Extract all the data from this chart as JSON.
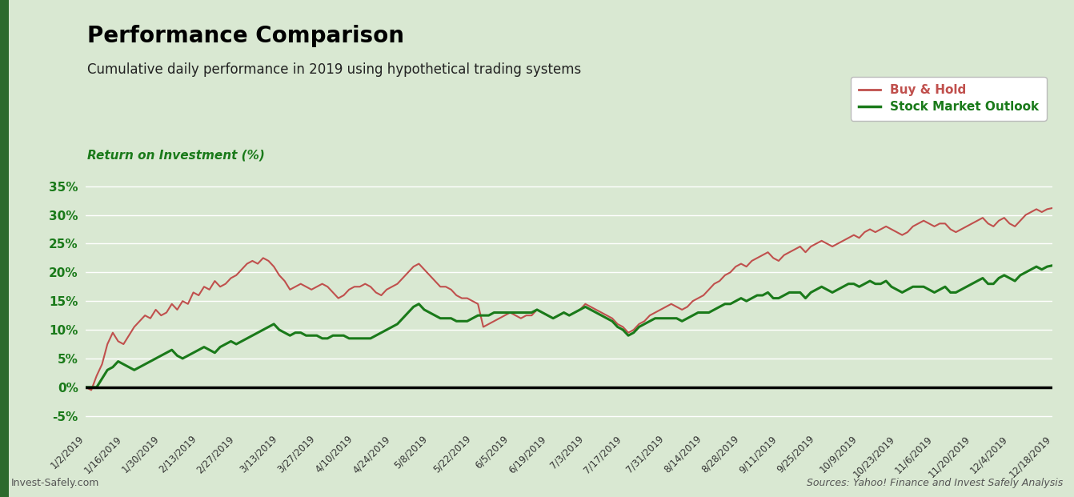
{
  "title": "Performance Comparison",
  "subtitle": "Cumulative daily performance in 2019 using hypothetical trading systems",
  "ylabel": "Return on Investment (%)",
  "footer_left": "Invest-Safely.com",
  "footer_right": "Sources: Yahoo! Finance and Invest Safely Analysis",
  "legend_labels": [
    "Buy & Hold",
    "Stock Market Outlook"
  ],
  "legend_colors": [
    "#c0504d",
    "#1a7a1a"
  ],
  "bg_color": "#d9e8d2",
  "title_color": "#000000",
  "subtitle_color": "#222222",
  "ylabel_color": "#1a7a1a",
  "ytick_color": "#1a7a1a",
  "xtick_color": "#333333",
  "grid_color": "#ffffff",
  "zero_line_color": "#000000",
  "green_bar_color": "#2d6a2d",
  "ylim": [
    -7,
    38
  ],
  "yticks": [
    -5,
    0,
    5,
    10,
    15,
    20,
    25,
    30,
    35
  ],
  "xtick_labels": [
    "1/2/2019",
    "1/16/2019",
    "1/30/2019",
    "2/13/2019",
    "2/27/2019",
    "3/13/2019",
    "3/27/2019",
    "4/10/2019",
    "4/24/2019",
    "5/8/2019",
    "5/22/2019",
    "6/5/2019",
    "6/19/2019",
    "7/3/2019",
    "7/17/2019",
    "7/31/2019",
    "8/14/2019",
    "8/28/2019",
    "9/11/2019",
    "9/25/2019",
    "10/9/2019",
    "10/23/2019",
    "11/6/2019",
    "11/20/2019",
    "12/4/2019",
    "12/18/2019"
  ],
  "buy_hold": [
    0.0,
    -0.5,
    2.0,
    4.0,
    7.5,
    9.5,
    8.0,
    7.5,
    9.0,
    10.5,
    11.5,
    12.5,
    12.0,
    13.5,
    12.5,
    13.0,
    14.5,
    13.5,
    15.0,
    14.5,
    16.5,
    16.0,
    17.5,
    17.0,
    18.5,
    17.5,
    18.0,
    19.0,
    19.5,
    20.5,
    21.5,
    22.0,
    21.5,
    22.5,
    22.0,
    21.0,
    19.5,
    18.5,
    17.0,
    17.5,
    18.0,
    17.5,
    17.0,
    17.5,
    18.0,
    17.5,
    16.5,
    15.5,
    16.0,
    17.0,
    17.5,
    17.5,
    18.0,
    17.5,
    16.5,
    16.0,
    17.0,
    17.5,
    18.0,
    19.0,
    20.0,
    21.0,
    21.5,
    20.5,
    19.5,
    18.5,
    17.5,
    17.5,
    17.0,
    16.0,
    15.5,
    15.5,
    15.0,
    14.5,
    10.5,
    11.0,
    11.5,
    12.0,
    12.5,
    13.0,
    12.5,
    12.0,
    12.5,
    12.5,
    13.5,
    13.0,
    12.5,
    12.0,
    12.5,
    13.0,
    12.5,
    13.0,
    13.5,
    14.5,
    14.0,
    13.5,
    13.0,
    12.5,
    12.0,
    11.0,
    10.5,
    9.5,
    10.0,
    11.0,
    11.5,
    12.5,
    13.0,
    13.5,
    14.0,
    14.5,
    14.0,
    13.5,
    14.0,
    15.0,
    15.5,
    16.0,
    17.0,
    18.0,
    18.5,
    19.5,
    20.0,
    21.0,
    21.5,
    21.0,
    22.0,
    22.5,
    23.0,
    23.5,
    22.5,
    22.0,
    23.0,
    23.5,
    24.0,
    24.5,
    23.5,
    24.5,
    25.0,
    25.5,
    25.0,
    24.5,
    25.0,
    25.5,
    26.0,
    26.5,
    26.0,
    27.0,
    27.5,
    27.0,
    27.5,
    28.0,
    27.5,
    27.0,
    26.5,
    27.0,
    28.0,
    28.5,
    29.0,
    28.5,
    28.0,
    28.5,
    28.5,
    27.5,
    27.0,
    27.5,
    28.0,
    28.5,
    29.0,
    29.5,
    28.5,
    28.0,
    29.0,
    29.5,
    28.5,
    28.0,
    29.0,
    30.0,
    30.5,
    31.0,
    30.5,
    31.0,
    31.2
  ],
  "smo": [
    0.0,
    0.0,
    0.0,
    1.5,
    3.0,
    3.5,
    4.5,
    4.0,
    3.5,
    3.0,
    3.5,
    4.0,
    4.5,
    5.0,
    5.5,
    6.0,
    6.5,
    5.5,
    5.0,
    5.5,
    6.0,
    6.5,
    7.0,
    6.5,
    6.0,
    7.0,
    7.5,
    8.0,
    7.5,
    8.0,
    8.5,
    9.0,
    9.5,
    10.0,
    10.5,
    11.0,
    10.0,
    9.5,
    9.0,
    9.5,
    9.5,
    9.0,
    9.0,
    9.0,
    8.5,
    8.5,
    9.0,
    9.0,
    9.0,
    8.5,
    8.5,
    8.5,
    8.5,
    8.5,
    9.0,
    9.5,
    10.0,
    10.5,
    11.0,
    12.0,
    13.0,
    14.0,
    14.5,
    13.5,
    13.0,
    12.5,
    12.0,
    12.0,
    12.0,
    11.5,
    11.5,
    11.5,
    12.0,
    12.5,
    12.5,
    12.5,
    13.0,
    13.0,
    13.0,
    13.0,
    13.0,
    13.0,
    13.0,
    13.0,
    13.5,
    13.0,
    12.5,
    12.0,
    12.5,
    13.0,
    12.5,
    13.0,
    13.5,
    14.0,
    13.5,
    13.0,
    12.5,
    12.0,
    11.5,
    10.5,
    10.0,
    9.0,
    9.5,
    10.5,
    11.0,
    11.5,
    12.0,
    12.0,
    12.0,
    12.0,
    12.0,
    11.5,
    12.0,
    12.5,
    13.0,
    13.0,
    13.0,
    13.5,
    14.0,
    14.5,
    14.5,
    15.0,
    15.5,
    15.0,
    15.5,
    16.0,
    16.0,
    16.5,
    15.5,
    15.5,
    16.0,
    16.5,
    16.5,
    16.5,
    15.5,
    16.5,
    17.0,
    17.5,
    17.0,
    16.5,
    17.0,
    17.5,
    18.0,
    18.0,
    17.5,
    18.0,
    18.5,
    18.0,
    18.0,
    18.5,
    17.5,
    17.0,
    16.5,
    17.0,
    17.5,
    17.5,
    17.5,
    17.0,
    16.5,
    17.0,
    17.5,
    16.5,
    16.5,
    17.0,
    17.5,
    18.0,
    18.5,
    19.0,
    18.0,
    18.0,
    19.0,
    19.5,
    19.0,
    18.5,
    19.5,
    20.0,
    20.5,
    21.0,
    20.5,
    21.0,
    21.2
  ]
}
